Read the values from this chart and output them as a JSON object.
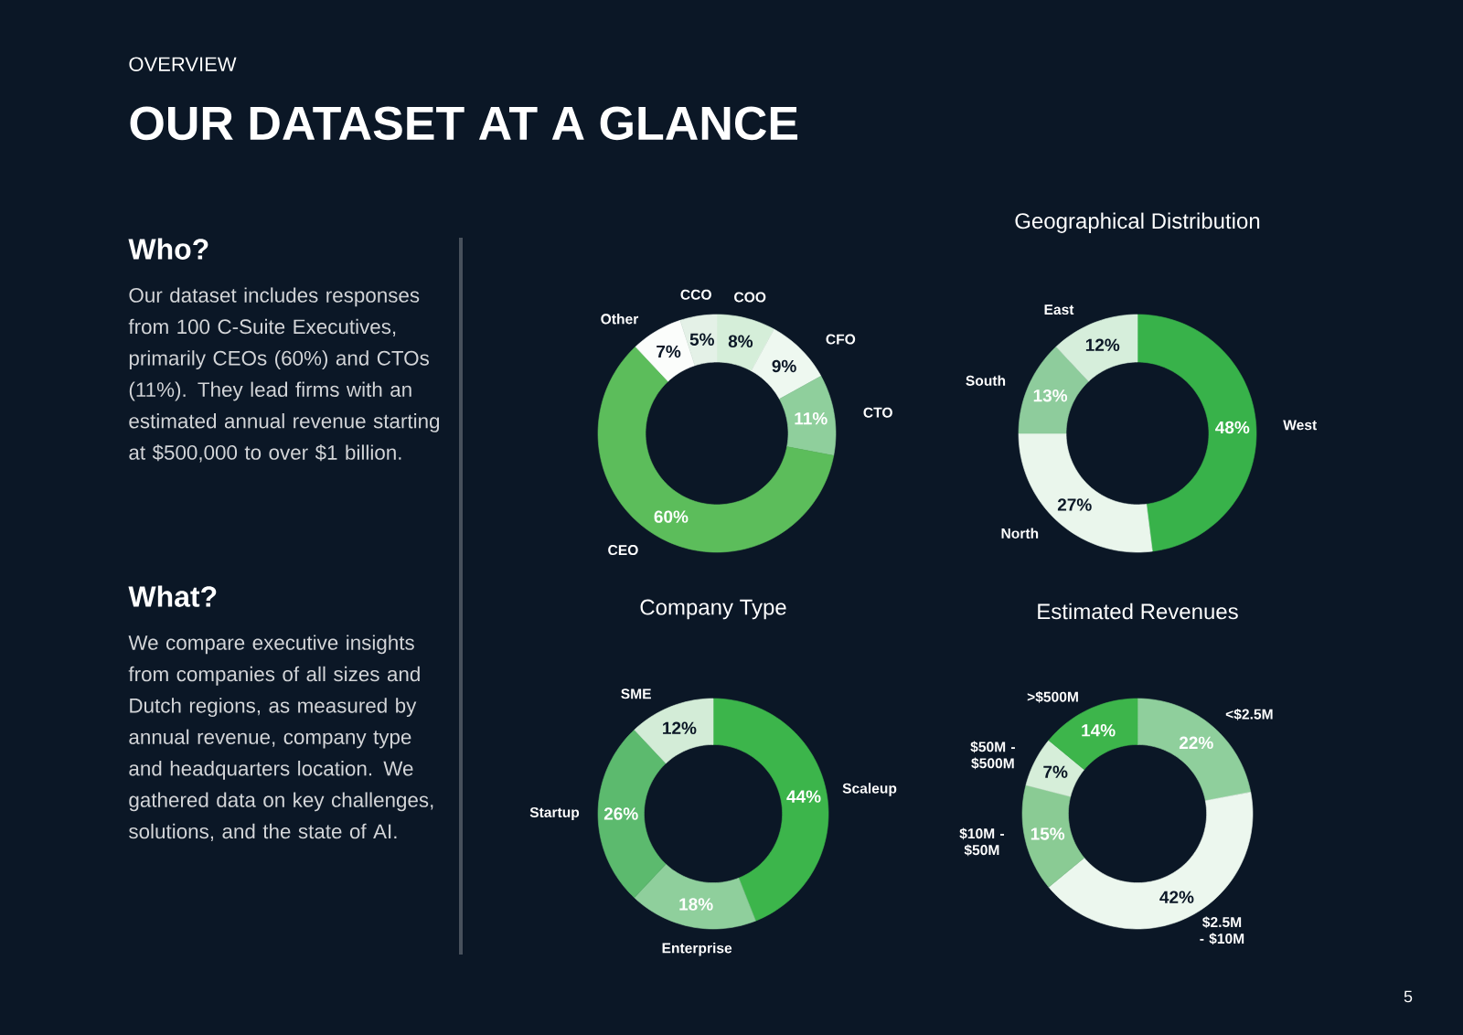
{
  "chart_data": [
    {
      "type": "other",
      "subtitle": "OVERVIEW",
      "title": "OUR DATASET AT A GLANCE",
      "annotations": [
        "Who?",
        "Our dataset includes responses from 100 C-Suite Executives, primarily CEOs (60%) and CTOs (11%). They lead firms with an estimated annual revenue starting at $500,000 to over $1 billion.",
        "What?",
        "We compare executive insights from companies of all sizes and Dutch regions, as measured by annual revenue, company type and headquarters location. We gathered data on key challenges, solutions, and the state of AI.",
        "5"
      ]
    },
    {
      "type": "donut",
      "categories": [
        "COO",
        "CFO",
        "CTO",
        "CEO",
        "Other",
        "CCO"
      ],
      "values": [
        8,
        9,
        11,
        60,
        7,
        5
      ],
      "colors": [
        "#d5eed9",
        "#eef8f0",
        "#8fcf9c",
        "#5cbd5b",
        "#fbfdfb",
        "#e4f1e7"
      ],
      "value_labels": [
        "8%",
        "9%",
        "11%",
        "60%",
        "7%",
        "5%"
      ]
    },
    {
      "type": "donut",
      "title": "Geographical Distribution",
      "categories": [
        "West",
        "North",
        "South",
        "East"
      ],
      "values": [
        48,
        27,
        13,
        12
      ],
      "colors": [
        "#38b24a",
        "#eaf6ec",
        "#8ecc9c",
        "#d6eedb"
      ],
      "value_labels": [
        "48%",
        "27%",
        "13%",
        "12%"
      ]
    },
    {
      "type": "donut",
      "title": "Company Type",
      "categories": [
        "Scaleup",
        "Enterprise",
        "Startup",
        "SME"
      ],
      "values": [
        44,
        18,
        26,
        12
      ],
      "colors": [
        "#3cb54b",
        "#8fcf9c",
        "#5cba6e",
        "#d3ecd7"
      ],
      "value_labels": [
        "44%",
        "18%",
        "26%",
        "12%"
      ]
    },
    {
      "type": "donut",
      "title": "Estimated Revenues",
      "categories": [
        "<$2.5M",
        "$2.5M - $10M",
        "$10M - $50M",
        "$50M - $500M",
        ">$500M"
      ],
      "values": [
        22,
        42,
        15,
        7,
        14
      ],
      "colors": [
        "#8fcf9c",
        "#ecf7ee",
        "#8acb94",
        "#d6eed9",
        "#3db54b"
      ],
      "value_labels": [
        "22%",
        "42%",
        "15%",
        "7%",
        "14%"
      ]
    }
  ]
}
